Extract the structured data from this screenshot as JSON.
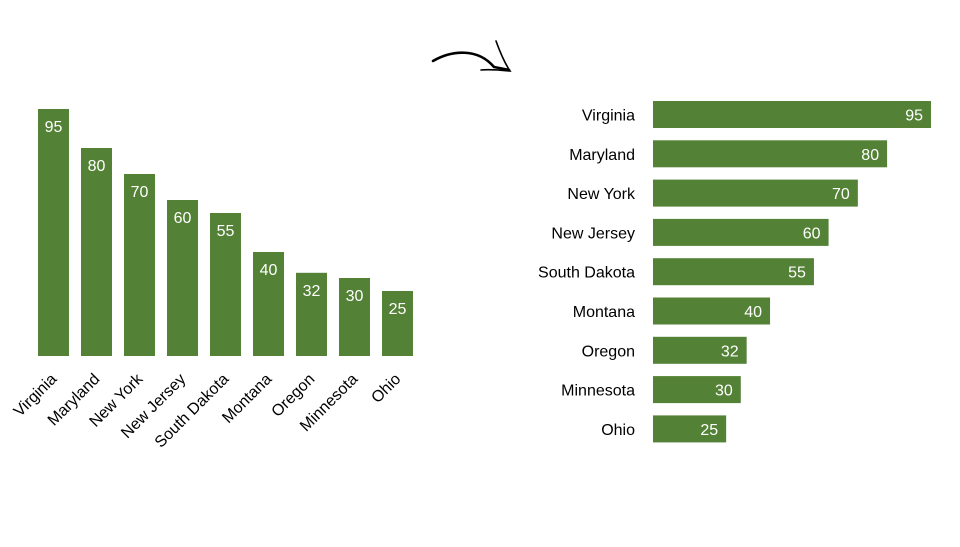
{
  "colors": {
    "bar": "#538135",
    "label_inside": "#ffffff",
    "text": "#000000",
    "arrow": "#000000",
    "background": "#ffffff"
  },
  "arrow_icon": "curved-arrow-right-icon",
  "chart_data": [
    {
      "type": "bar",
      "orientation": "vertical",
      "categories": [
        "Virginia",
        "Maryland",
        "New York",
        "New Jersey",
        "South Dakota",
        "Montana",
        "Oregon",
        "Minnesota",
        "Ohio"
      ],
      "values": [
        95,
        80,
        70,
        60,
        55,
        40,
        32,
        30,
        25
      ],
      "data_labels": true,
      "data_label_position": "inside-end",
      "tick_label_rotation_deg": -45,
      "grid": false,
      "axes_visible": false,
      "legend": "none"
    },
    {
      "type": "bar",
      "orientation": "horizontal",
      "categories": [
        "Virginia",
        "Maryland",
        "New York",
        "New Jersey",
        "South Dakota",
        "Montana",
        "Oregon",
        "Minnesota",
        "Ohio"
      ],
      "values": [
        95,
        80,
        70,
        60,
        55,
        40,
        32,
        30,
        25
      ],
      "data_labels": true,
      "data_label_position": "inside-end",
      "grid": false,
      "axes_visible": false,
      "legend": "none"
    }
  ]
}
